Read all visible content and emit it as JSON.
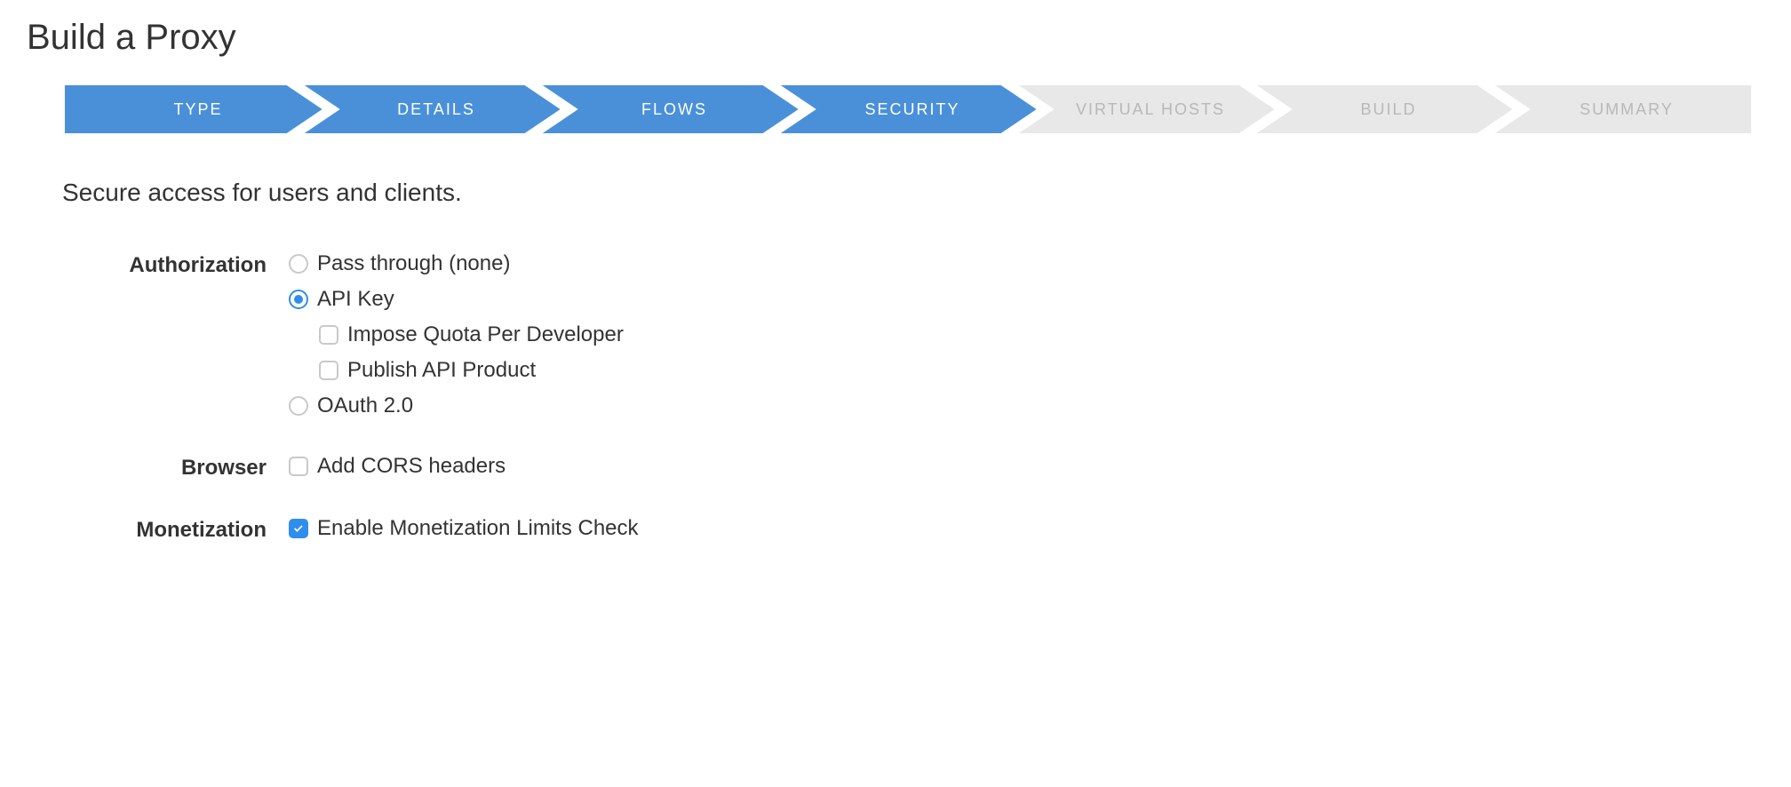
{
  "page": {
    "title": "Build a Proxy",
    "description": "Secure access for users and clients."
  },
  "colors": {
    "step_active_bg": "#4a90d9",
    "step_inactive_bg": "#e8e8e8",
    "step_active_text": "#ffffff",
    "step_inactive_text": "#b8b8b8",
    "accent": "#2f8eed",
    "text": "#333333",
    "border_gray": "#c9c9c9",
    "background": "#ffffff"
  },
  "steps": [
    {
      "id": "type",
      "label": "TYPE",
      "active": true
    },
    {
      "id": "details",
      "label": "DETAILS",
      "active": true
    },
    {
      "id": "flows",
      "label": "FLOWS",
      "active": true
    },
    {
      "id": "security",
      "label": "SECURITY",
      "active": true
    },
    {
      "id": "virtual-hosts",
      "label": "VIRTUAL HOSTS",
      "active": false
    },
    {
      "id": "build",
      "label": "BUILD",
      "active": false
    },
    {
      "id": "summary",
      "label": "SUMMARY",
      "active": false
    }
  ],
  "form": {
    "authorization": {
      "label": "Authorization",
      "options": {
        "pass_through": {
          "label": "Pass through (none)",
          "selected": false
        },
        "api_key": {
          "label": "API Key",
          "selected": true,
          "sub_options": {
            "impose_quota": {
              "label": "Impose Quota Per Developer",
              "checked": false
            },
            "publish_product": {
              "label": "Publish API Product",
              "checked": false
            }
          }
        },
        "oauth": {
          "label": "OAuth 2.0",
          "selected": false
        }
      }
    },
    "browser": {
      "label": "Browser",
      "options": {
        "cors": {
          "label": "Add CORS headers",
          "checked": false
        }
      }
    },
    "monetization": {
      "label": "Monetization",
      "options": {
        "limits_check": {
          "label": "Enable Monetization Limits Check",
          "checked": true
        }
      }
    }
  }
}
